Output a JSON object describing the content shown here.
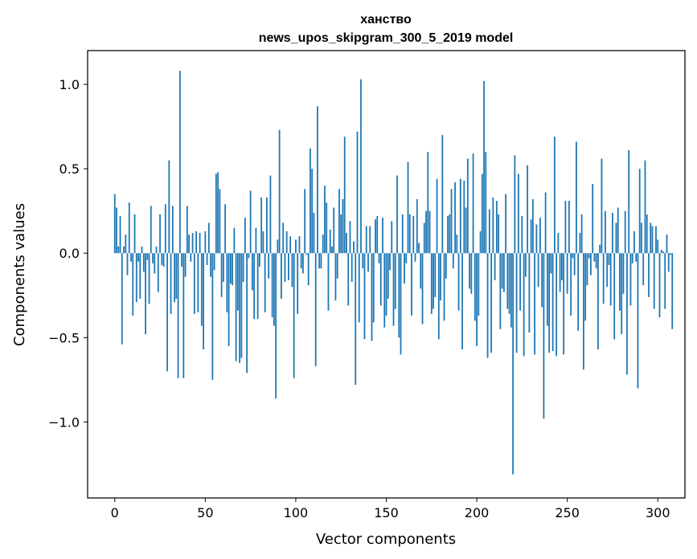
{
  "chart_data": {
    "type": "bar",
    "title_line1": "ханство",
    "title_line2": "news_upos_skipgram_300_5_2019 model",
    "xlabel": "Vector components",
    "ylabel": "Components values",
    "xlim": [
      -15,
      315
    ],
    "ylim": [
      -1.45,
      1.2
    ],
    "x_ticks": [
      0,
      50,
      100,
      150,
      200,
      250,
      300
    ],
    "x_tick_labels": [
      "0",
      "50",
      "100",
      "150",
      "200",
      "250",
      "300"
    ],
    "y_ticks": [
      -1.0,
      -0.5,
      0.0,
      0.5,
      1.0
    ],
    "y_tick_labels": [
      "−1.0",
      "−0.5",
      "0.0",
      "0.5",
      "1.0"
    ],
    "bar_color": "#1f77b4",
    "bar_width": 0.8,
    "values": [
      0.35,
      0.27,
      0.04,
      0.22,
      -0.54,
      0.04,
      0.11,
      -0.13,
      0.3,
      -0.05,
      -0.37,
      0.23,
      -0.29,
      -0.05,
      -0.27,
      0.04,
      -0.11,
      -0.48,
      -0.04,
      -0.3,
      0.28,
      -0.06,
      -0.12,
      0.04,
      -0.23,
      0.23,
      -0.07,
      -0.08,
      0.29,
      -0.7,
      0.55,
      -0.36,
      0.28,
      -0.29,
      -0.27,
      -0.74,
      1.08,
      -0.08,
      -0.74,
      -0.14,
      0.28,
      0.11,
      -0.05,
      0.12,
      -0.36,
      0.13,
      -0.35,
      0.12,
      -0.43,
      -0.57,
      0.13,
      -0.07,
      0.18,
      -0.14,
      -0.75,
      -0.1,
      0.47,
      0.48,
      0.38,
      -0.26,
      -0.17,
      0.29,
      -0.35,
      -0.55,
      -0.18,
      -0.19,
      0.15,
      -0.64,
      -0.34,
      -0.65,
      -0.62,
      -0.17,
      0.21,
      -0.71,
      -0.03,
      0.37,
      -0.22,
      -0.39,
      0.15,
      -0.39,
      -0.08,
      0.33,
      0.13,
      -0.35,
      0.33,
      -0.15,
      0.46,
      -0.38,
      -0.43,
      -0.86,
      0.08,
      0.73,
      -0.27,
      0.18,
      -0.17,
      0.13,
      -0.16,
      0.1,
      -0.2,
      -0.74,
      0.08,
      -0.36,
      0.1,
      -0.09,
      -0.12,
      0.38,
      -0.01,
      -0.19,
      0.62,
      0.5,
      0.24,
      -0.67,
      0.87,
      -0.09,
      -0.09,
      0.11,
      0.4,
      0.3,
      -0.34,
      0.14,
      0.04,
      0.27,
      -0.28,
      -0.15,
      0.38,
      0.23,
      0.32,
      0.69,
      0.12,
      -0.31,
      0.19,
      -0.17,
      0.07,
      -0.78,
      0.72,
      -0.41,
      1.03,
      -0.09,
      -0.51,
      0.16,
      -0.11,
      0.16,
      -0.52,
      -0.41,
      0.2,
      0.22,
      -0.06,
      -0.31,
      0.21,
      -0.44,
      -0.37,
      -0.27,
      -0.1,
      0.19,
      -0.43,
      -0.33,
      0.46,
      -0.5,
      -0.6,
      0.23,
      -0.18,
      -0.06,
      0.54,
      0.23,
      -0.37,
      0.22,
      -0.05,
      0.32,
      0.06,
      -0.21,
      -0.42,
      0.18,
      0.25,
      0.6,
      0.25,
      -0.36,
      -0.33,
      -0.26,
      0.44,
      -0.51,
      -0.28,
      0.7,
      -0.4,
      -0.15,
      0.22,
      0.23,
      0.38,
      -0.09,
      0.42,
      0.11,
      -0.34,
      0.44,
      -0.57,
      0.43,
      0.27,
      0.56,
      -0.21,
      -0.24,
      0.59,
      -0.4,
      -0.55,
      -0.37,
      0.13,
      0.47,
      1.02,
      0.6,
      -0.62,
      0.26,
      -0.59,
      0.33,
      -0.16,
      0.31,
      0.23,
      -0.45,
      -0.21,
      -0.23,
      0.35,
      -0.33,
      -0.36,
      -0.44,
      -1.31,
      0.58,
      -0.59,
      0.47,
      -0.34,
      0.22,
      -0.61,
      -0.14,
      0.52,
      -0.47,
      0.2,
      0.32,
      -0.6,
      0.17,
      -0.2,
      0.21,
      -0.32,
      -0.98,
      0.36,
      -0.43,
      -0.59,
      -0.12,
      -0.58,
      0.69,
      -0.61,
      0.12,
      -0.23,
      -0.16,
      -0.6,
      0.31,
      -0.24,
      0.31,
      -0.37,
      -0.03,
      -0.13,
      0.66,
      -0.46,
      0.12,
      0.23,
      -0.69,
      -0.4,
      -0.19,
      -0.03,
      -0.13,
      0.41,
      -0.05,
      -0.09,
      -0.57,
      0.05,
      0.56,
      -0.3,
      0.25,
      -0.2,
      -0.07,
      -0.31,
      0.24,
      -0.51,
      0.18,
      0.27,
      -0.34,
      -0.48,
      -0.24,
      0.25,
      -0.72,
      0.61,
      -0.31,
      -0.06,
      0.13,
      -0.05,
      -0.8,
      0.5,
      0.18,
      -0.19,
      0.55,
      0.23,
      -0.26,
      0.18,
      0.16,
      -0.33,
      0.16,
      0.08,
      -0.38,
      0.02,
      0.01,
      -0.33,
      0.11,
      -0.11,
      -0.01,
      -0.45
    ]
  }
}
